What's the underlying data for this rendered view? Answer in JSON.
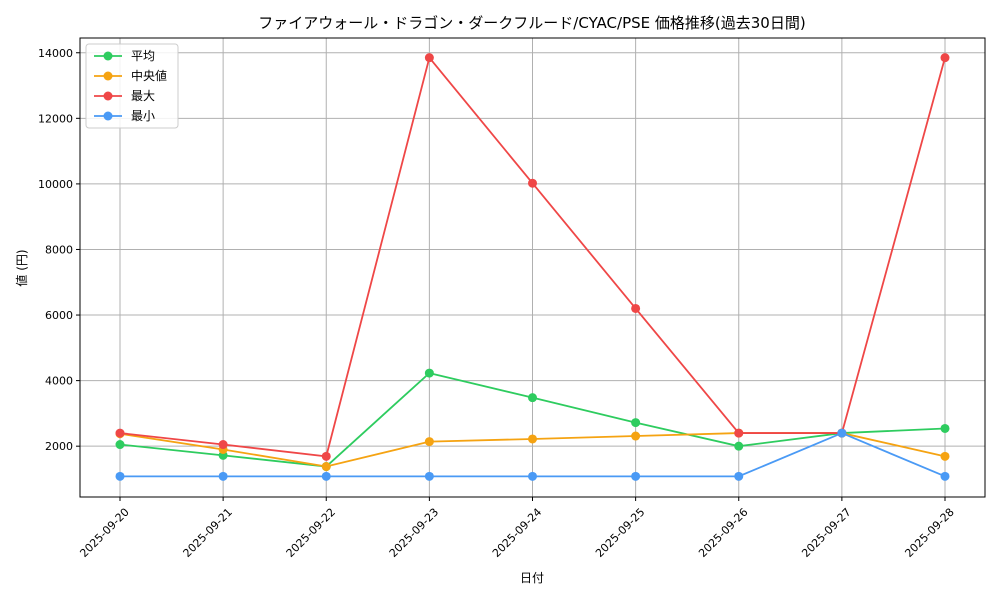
{
  "chart_data": {
    "type": "line",
    "title": "ファイアウォール・ドラゴン・ダークフルード/CYAC/PSE 価格推移(過去30日間)",
    "xlabel": "日付",
    "ylabel": "値 (円)",
    "categories": [
      "2025-09-20",
      "2025-09-21",
      "2025-09-22",
      "2025-09-23",
      "2025-09-24",
      "2025-09-25",
      "2025-09-26",
      "2025-09-27",
      "2025-09-28"
    ],
    "ylim": [
      450,
      14450
    ],
    "yticks": [
      2000,
      4000,
      6000,
      8000,
      10000,
      12000,
      14000
    ],
    "grid": true,
    "legend_position": "top-left",
    "series": [
      {
        "name": "平均",
        "color": "#2ecc5f",
        "values": [
          2050,
          1720,
          1380,
          4230,
          3480,
          2720,
          2000,
          2400,
          2540
        ]
      },
      {
        "name": "中央値",
        "color": "#f5a312",
        "values": [
          2380,
          1900,
          1380,
          2140,
          2220,
          2310,
          2400,
          2400,
          1690
        ]
      },
      {
        "name": "最大",
        "color": "#ef4747",
        "values": [
          2400,
          2050,
          1690,
          13850,
          10020,
          6200,
          2400,
          2400,
          13850
        ]
      },
      {
        "name": "最小",
        "color": "#4a9af5",
        "values": [
          1080,
          1080,
          1080,
          1080,
          1080,
          1080,
          1080,
          2400,
          1080
        ]
      }
    ]
  }
}
